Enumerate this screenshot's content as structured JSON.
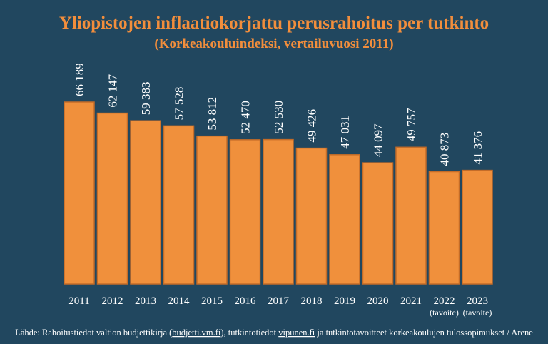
{
  "chart_data": {
    "type": "bar",
    "title": "Yliopistojen inflaatiokorjattu perusrahoitus per tutkinto",
    "subtitle": "(Korkeakouluindeksi, vertailuvuosi 2011)",
    "categories": [
      "2011",
      "2012",
      "2013",
      "2014",
      "2015",
      "2016",
      "2017",
      "2018",
      "2019",
      "2020",
      "2021",
      "2022",
      "2023"
    ],
    "category_notes": [
      "",
      "",
      "",
      "",
      "",
      "",
      "",
      "",
      "",
      "",
      "",
      "(tavoite)",
      "(tavoite)"
    ],
    "values": [
      66189,
      62147,
      59383,
      57528,
      53812,
      52470,
      52530,
      49426,
      47031,
      44097,
      49757,
      40873,
      41376
    ],
    "value_labels": [
      "66 189",
      "62 147",
      "59 383",
      "57 528",
      "53 812",
      "52 470",
      "52 530",
      "49 426",
      "47 031",
      "44 097",
      "49 757",
      "40 873",
      "41 376"
    ],
    "xlabel": "",
    "ylabel": "",
    "ylim": [
      0,
      66189
    ],
    "grid": false,
    "colors": {
      "background": "#21475f",
      "bar": "#f0903c",
      "bar_border": "#c46c28",
      "title": "#f28e3c",
      "text": "#ffffff"
    }
  },
  "source": {
    "prefix": "Lähde: Rahoitustiedot valtion budjettikirja (",
    "link1": "budjetti.vm.fi",
    "middle": "), tutkintotiedot ",
    "link2": "vipunen.fi",
    "suffix": " ja tutkintotavoitteet korkeakoulujen tulossopimukset / Arene"
  }
}
